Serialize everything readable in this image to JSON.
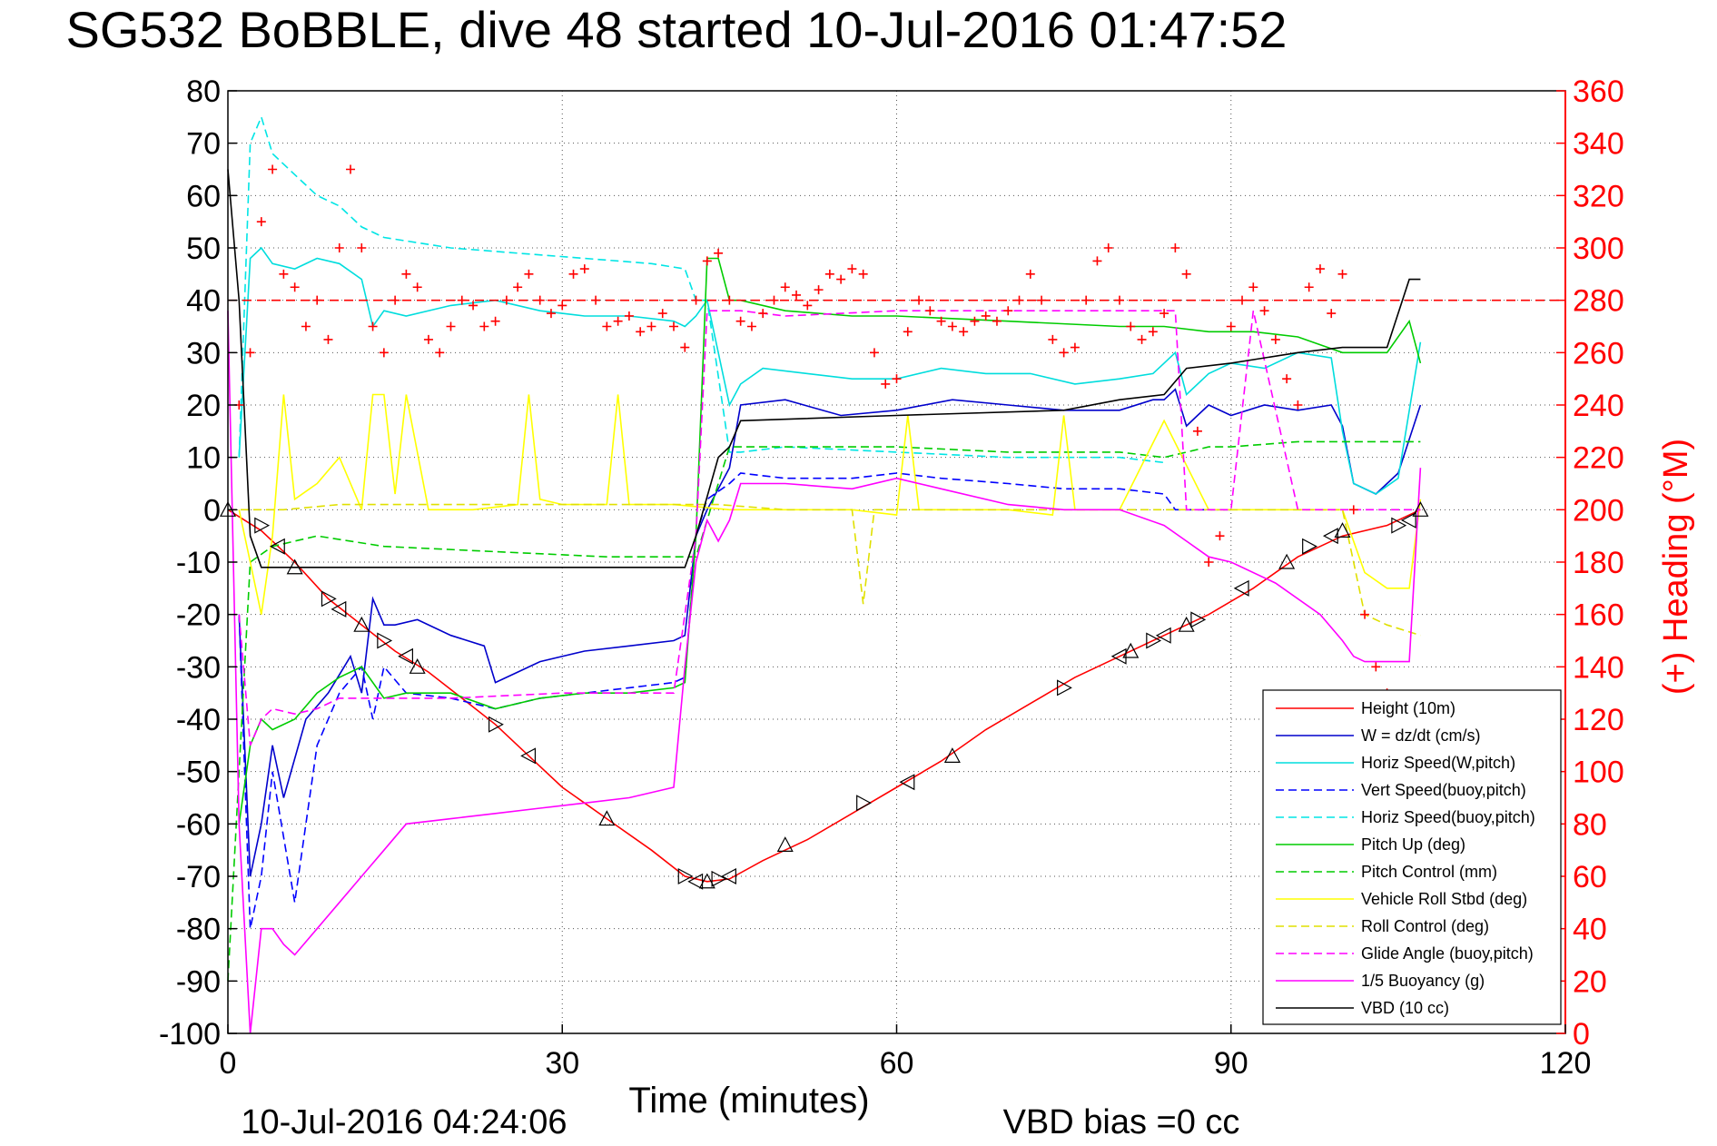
{
  "chart_data": {
    "type": "line",
    "title": "SG532 BoBBLE, dive 48 started 10-Jul-2016 01:47:52",
    "xlabel": "Time (minutes)",
    "ylabel_right": "(+) Heading (°M)",
    "footer_left": "10-Jul-2016 04:24:06",
    "footer_right": "VBD bias =0 cc",
    "xlim": [
      0,
      120
    ],
    "ylim_left": [
      -100,
      80
    ],
    "ylim_right": [
      0,
      360
    ],
    "x_ticks": [
      "0",
      "30",
      "60",
      "90",
      "120"
    ],
    "y_ticks_left": [
      "80",
      "70",
      "60",
      "50",
      "40",
      "30",
      "20",
      "10",
      "0",
      "-10",
      "-20",
      "-30",
      "-40",
      "-50",
      "-60",
      "-70",
      "-80",
      "-90",
      "-100"
    ],
    "y_ticks_right": [
      "360",
      "340",
      "320",
      "300",
      "280",
      "260",
      "240",
      "220",
      "200",
      "180",
      "160",
      "140",
      "120",
      "100",
      "80",
      "60",
      "40",
      "20",
      "0"
    ],
    "grid": true,
    "legend_position": "bottom-right",
    "colors": {
      "height": "#ff0000",
      "w": "#0000cc",
      "horiz_w": "#00dddd",
      "vert_buoy": "#0000ff",
      "horiz_buoy": "#00e5e5",
      "pitch": "#00cc00",
      "pitch_ctrl": "#00cc00",
      "roll": "#ffff00",
      "roll_ctrl": "#e0e000",
      "glide": "#ff00ff",
      "buoyancy": "#ff00ff",
      "vbd": "#000000",
      "heading": "#ff0000",
      "grid": "#555555"
    },
    "legend": [
      {
        "label": "Height (10m)",
        "color": "#ff0000",
        "dash": false
      },
      {
        "label": "W = dz/dt (cm/s)",
        "color": "#0000cc",
        "dash": false
      },
      {
        "label": "Horiz Speed(W,pitch)",
        "color": "#00dddd",
        "dash": false
      },
      {
        "label": "Vert Speed(buoy,pitch)",
        "color": "#0000ff",
        "dash": true
      },
      {
        "label": "Horiz Speed(buoy,pitch)",
        "color": "#00e5e5",
        "dash": true
      },
      {
        "label": "Pitch Up (deg)",
        "color": "#00cc00",
        "dash": false
      },
      {
        "label": "Pitch Control (mm)",
        "color": "#00cc00",
        "dash": true
      },
      {
        "label": "Vehicle Roll Stbd (deg)",
        "color": "#ffff00",
        "dash": false
      },
      {
        "label": "Roll Control (deg)",
        "color": "#e0e000",
        "dash": true
      },
      {
        "label": "Glide Angle (buoy,pitch)",
        "color": "#ff00ff",
        "dash": true
      },
      {
        "label": "1/5 Buoyancy (g)",
        "color": "#ff00ff",
        "dash": false
      },
      {
        "label": "VBD (10 cc)",
        "color": "#000000",
        "dash": false
      }
    ],
    "heading_target": 280,
    "series": [
      {
        "key": "height",
        "x": [
          0,
          3,
          6,
          9,
          12,
          15,
          18,
          21,
          24,
          27,
          30,
          34,
          38,
          41,
          43,
          45,
          48,
          52,
          56,
          60,
          64,
          68,
          72,
          76,
          80,
          84,
          88,
          92,
          96,
          100,
          104,
          107
        ],
        "y": [
          0,
          -4,
          -10,
          -17,
          -22,
          -27,
          -31,
          -36,
          -41,
          -47,
          -53,
          -59,
          -65,
          -70,
          -71,
          -70.5,
          -67,
          -63,
          -58,
          -53,
          -48,
          -42,
          -37,
          -32,
          -28,
          -24,
          -20,
          -15,
          -9,
          -5,
          -3,
          0
        ]
      },
      {
        "key": "w",
        "x": [
          1,
          2,
          3,
          4,
          5,
          7,
          9,
          11,
          12,
          13,
          14,
          15,
          17,
          20,
          23,
          24,
          26,
          28,
          32,
          36,
          40,
          41,
          42,
          43,
          45,
          46,
          50,
          55,
          60,
          65,
          70,
          75,
          80,
          83,
          84,
          85,
          86,
          87,
          88,
          90,
          93,
          96,
          99,
          100,
          101,
          103,
          105,
          107
        ],
        "y": [
          -20,
          -70,
          -60,
          -45,
          -55,
          -40,
          -35,
          -28,
          -35,
          -17,
          -22,
          -22,
          -21,
          -24,
          -26,
          -33,
          -31,
          -29,
          -27,
          -26,
          -25,
          -24,
          -5,
          0,
          8,
          20,
          21,
          18,
          19,
          21,
          20,
          19,
          19,
          21,
          21,
          23,
          16,
          18,
          20,
          18,
          20,
          19,
          20,
          16,
          5,
          3,
          7,
          20
        ]
      },
      {
        "key": "horiz_w",
        "x": [
          1,
          2,
          3,
          4,
          6,
          8,
          10,
          12,
          13,
          14,
          16,
          20,
          24,
          28,
          32,
          36,
          40,
          41,
          42,
          43,
          45,
          46,
          48,
          52,
          56,
          60,
          64,
          68,
          72,
          76,
          80,
          83,
          84,
          85,
          86,
          88,
          90,
          93,
          96,
          99,
          100,
          101,
          103,
          105,
          107
        ],
        "y": [
          10,
          48,
          50,
          47,
          46,
          48,
          47,
          44,
          35,
          38,
          37,
          39,
          40,
          38,
          37,
          37,
          36,
          35,
          37,
          40,
          20,
          24,
          27,
          26,
          25,
          25,
          27,
          26,
          26,
          24,
          25,
          26,
          28,
          30,
          22,
          26,
          28,
          27,
          30,
          29,
          15,
          5,
          3,
          6,
          32
        ]
      },
      {
        "key": "vert_buoy",
        "dash": true,
        "x": [
          1,
          2,
          3,
          4,
          6,
          8,
          10,
          12,
          13,
          14,
          16,
          20,
          24,
          28,
          32,
          36,
          40,
          41,
          42,
          43,
          45,
          46,
          50,
          56,
          60,
          64,
          70,
          75,
          80,
          84,
          85,
          86,
          88,
          90
        ],
        "y": [
          -20,
          -80,
          -70,
          -50,
          -75,
          -45,
          -35,
          -30,
          -40,
          -30,
          -35,
          -36,
          -38,
          -36,
          -35,
          -34,
          -33,
          -32,
          -5,
          2,
          5,
          7,
          6,
          6,
          7,
          6,
          5,
          4,
          4,
          3,
          0,
          0,
          0,
          0
        ]
      },
      {
        "key": "horiz_buoy",
        "dash": true,
        "x": [
          1,
          2,
          3,
          4,
          6,
          8,
          10,
          12,
          14,
          20,
          26,
          32,
          38,
          41,
          42,
          43,
          45,
          46,
          50,
          60,
          70,
          80,
          84
        ],
        "y": [
          10,
          70,
          75,
          68,
          64,
          60,
          58,
          54,
          52,
          50,
          49,
          48,
          47,
          46,
          40,
          40,
          11,
          11,
          12,
          11,
          10,
          10,
          9
        ]
      },
      {
        "key": "pitch",
        "x": [
          1,
          2,
          3,
          4,
          6,
          8,
          10,
          12,
          14,
          16,
          20,
          24,
          28,
          32,
          36,
          40,
          41,
          42,
          43,
          44,
          45,
          46,
          50,
          56,
          60,
          70,
          80,
          84,
          88,
          92,
          96,
          100,
          104,
          106,
          107
        ],
        "y": [
          -60,
          -45,
          -40,
          -42,
          -40,
          -35,
          -32,
          -30,
          -36,
          -35,
          -35,
          -38,
          -36,
          -35,
          -35,
          -34,
          -33,
          -5,
          48,
          48,
          40,
          40,
          38,
          37,
          37,
          36,
          35,
          35,
          34,
          34,
          33,
          30,
          30,
          36,
          28
        ]
      },
      {
        "key": "pitch_ctrl",
        "dash": true,
        "x": [
          0,
          2,
          4,
          6,
          8,
          14,
          24,
          34,
          40,
          42,
          45,
          50,
          60,
          70,
          80,
          84,
          88,
          90,
          96,
          100,
          107
        ],
        "y": [
          -90,
          -10,
          -7,
          -6,
          -5,
          -7,
          -8,
          -9,
          -9,
          -9,
          12,
          12,
          12,
          11,
          11,
          10,
          12,
          12,
          13,
          13,
          13
        ]
      },
      {
        "key": "roll",
        "x": [
          1,
          2,
          3,
          4,
          5,
          6,
          8,
          10,
          12,
          13,
          14,
          15,
          16,
          18,
          22,
          26,
          27,
          28,
          30,
          34,
          35,
          36,
          40,
          45,
          50,
          56,
          60,
          61,
          62,
          66,
          70,
          74,
          75,
          76,
          80,
          84,
          88,
          92,
          96,
          100,
          102,
          104,
          106,
          107
        ],
        "y": [
          0,
          -10,
          -20,
          -5,
          22,
          2,
          5,
          10,
          0,
          22,
          22,
          3,
          22,
          0,
          0,
          1,
          22,
          2,
          1,
          1,
          22,
          1,
          1,
          0,
          0,
          0,
          -1,
          18,
          0,
          0,
          0,
          -1,
          18,
          0,
          0,
          17,
          0,
          0,
          0,
          0,
          -12,
          -15,
          -15,
          2
        ]
      },
      {
        "key": "roll_ctrl",
        "dash": true,
        "x": [
          0,
          5,
          10,
          20,
          30,
          40,
          44,
          50,
          56,
          57,
          58,
          60,
          70,
          80,
          90,
          100,
          102,
          104,
          107
        ],
        "y": [
          0,
          0,
          1,
          1,
          1,
          1,
          1,
          0,
          0,
          -18,
          0,
          0,
          0,
          0,
          0,
          0,
          -20,
          -22,
          -24
        ]
      },
      {
        "key": "glide",
        "dash": true,
        "x": [
          1,
          2,
          3,
          4,
          6,
          8,
          10,
          12,
          14,
          20,
          30,
          40,
          42,
          43,
          44,
          45,
          46,
          50,
          60,
          70,
          80,
          84,
          85,
          86,
          88,
          90,
          92,
          96,
          100,
          107
        ],
        "y": [
          -20,
          -45,
          -40,
          -38,
          -39,
          -38,
          -36,
          -36,
          -36,
          -36,
          -35,
          -35,
          -5,
          38,
          38,
          38,
          38,
          37,
          38,
          38,
          38,
          38,
          38,
          0,
          0,
          0,
          38,
          0,
          0,
          0
        ]
      },
      {
        "key": "buoyancy",
        "x": [
          0,
          1,
          2,
          3,
          4,
          5,
          6,
          8,
          10,
          12,
          14,
          16,
          20,
          24,
          28,
          32,
          36,
          40,
          41,
          42,
          43,
          44,
          45,
          46,
          50,
          56,
          60,
          64,
          70,
          75,
          80,
          84,
          86,
          88,
          90,
          94,
          98,
          100,
          101,
          102,
          104,
          106,
          107
        ],
        "y": [
          38,
          -60,
          -105,
          -80,
          -80,
          -83,
          -85,
          -80,
          -75,
          -70,
          -65,
          -60,
          -59,
          -58,
          -57,
          -56,
          -55,
          -53,
          -30,
          -10,
          -2,
          -6,
          -2,
          5,
          5,
          4,
          6,
          4,
          1,
          0,
          0,
          -3,
          -6,
          -9,
          -10,
          -14,
          -20,
          -25,
          -28,
          -29,
          -29,
          -29,
          8
        ]
      },
      {
        "key": "vbd",
        "x": [
          0,
          1,
          2,
          3,
          4,
          14,
          30,
          41,
          42,
          44,
          45,
          46,
          60,
          75,
          80,
          84,
          86,
          90,
          96,
          100,
          104,
          106,
          107
        ],
        "y": [
          65,
          40,
          -5,
          -11,
          -11,
          -11,
          -11,
          -11,
          -5,
          10,
          12,
          17,
          18,
          19,
          21,
          22,
          27,
          28,
          30,
          31,
          31,
          44,
          44
        ]
      }
    ],
    "heading": {
      "x": [
        1,
        2,
        3,
        4,
        5,
        6,
        7,
        8,
        9,
        10,
        11,
        12,
        13,
        14,
        15,
        16,
        17,
        18,
        19,
        20,
        21,
        22,
        23,
        24,
        25,
        26,
        27,
        28,
        29,
        30,
        31,
        32,
        33,
        34,
        35,
        36,
        37,
        38,
        39,
        40,
        41,
        42,
        43,
        44,
        45,
        46,
        47,
        48,
        49,
        50,
        51,
        52,
        53,
        54,
        55,
        56,
        57,
        58,
        59,
        60,
        61,
        62,
        63,
        64,
        65,
        66,
        67,
        68,
        69,
        70,
        71,
        72,
        73,
        74,
        75,
        76,
        77,
        78,
        79,
        80,
        81,
        82,
        83,
        84,
        85,
        86,
        87,
        88,
        89,
        90,
        91,
        92,
        93,
        94,
        95,
        96,
        97,
        98,
        99,
        100,
        101,
        102,
        103,
        104
      ],
      "y": [
        240,
        260,
        310,
        330,
        290,
        285,
        270,
        280,
        265,
        300,
        330,
        300,
        270,
        260,
        280,
        290,
        285,
        265,
        260,
        270,
        280,
        278,
        270,
        272,
        280,
        285,
        290,
        280,
        275,
        278,
        290,
        292,
        280,
        270,
        272,
        274,
        268,
        270,
        275,
        270,
        262,
        280,
        295,
        298,
        280,
        272,
        270,
        275,
        280,
        285,
        282,
        278,
        284,
        290,
        288,
        292,
        290,
        260,
        248,
        250,
        268,
        280,
        276,
        272,
        270,
        268,
        272,
        274,
        272,
        276,
        280,
        290,
        280,
        265,
        260,
        262,
        280,
        295,
        300,
        280,
        270,
        265,
        268,
        275,
        300,
        290,
        230,
        180,
        190,
        270,
        280,
        285,
        276,
        265,
        250,
        240,
        285,
        292,
        275,
        290,
        200,
        160,
        140,
        130
      ]
    },
    "markers": {
      "x": [
        0,
        3,
        4.5,
        6,
        9,
        10,
        12,
        14,
        16,
        17,
        24,
        27,
        34,
        41,
        42,
        43,
        44,
        45,
        50,
        57,
        61,
        65,
        75,
        80,
        81,
        83,
        84,
        86,
        87,
        91,
        95,
        97,
        99,
        100,
        105,
        106,
        107
      ],
      "y": [
        0,
        -3,
        -7,
        -11,
        -17,
        -19,
        -22,
        -25,
        -28,
        -30,
        -41,
        -47,
        -59,
        -70,
        -71,
        -71,
        -70.5,
        -70,
        -64,
        -56,
        -52,
        -47,
        -34,
        -28,
        -27,
        -25,
        -24,
        -22,
        -21,
        -15,
        -10,
        -7,
        -5,
        -4,
        -3,
        -2,
        0
      ]
    }
  }
}
